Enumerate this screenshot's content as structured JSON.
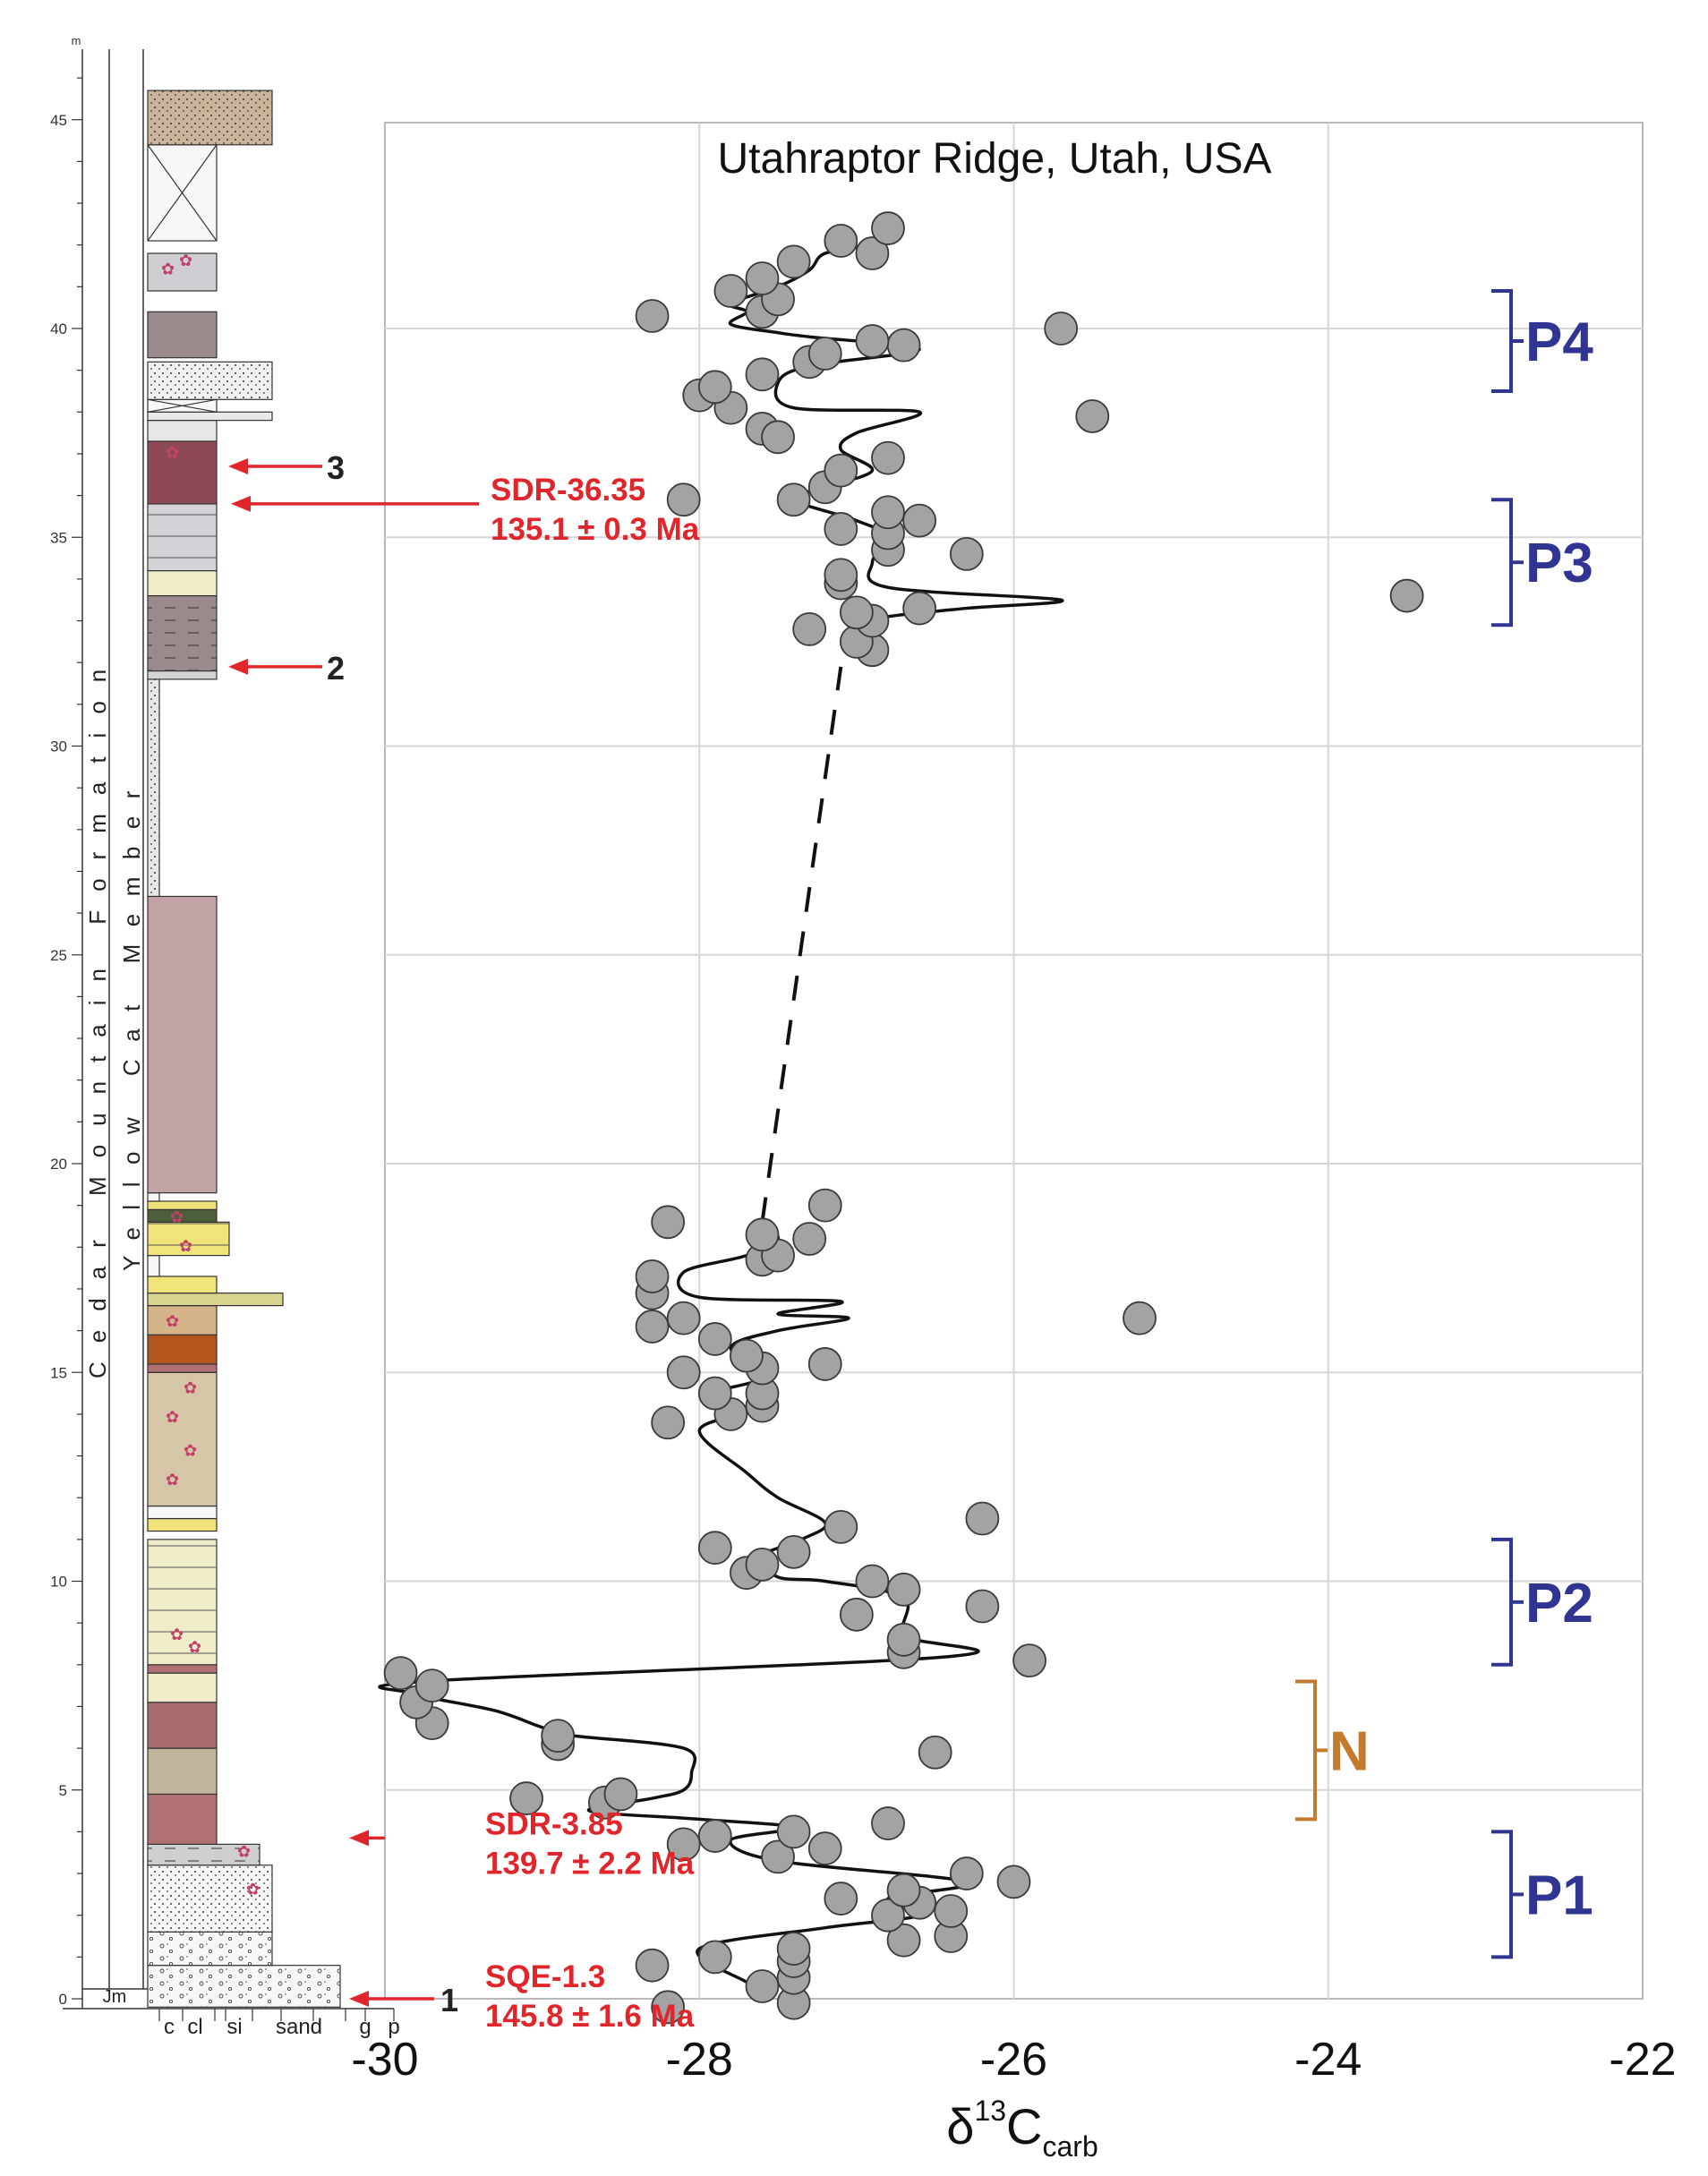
{
  "chart_data": {
    "type": "scatter",
    "title": "Utahraptor Ridge, Utah, USA",
    "xlabel_main": "δ",
    "xlabel_sup": "13",
    "xlabel_c": "C",
    "xlabel_sub": "carb",
    "xlim": [
      -30,
      -22
    ],
    "xticks": [
      -30,
      -28,
      -26,
      -24,
      -22
    ],
    "xtick_labels": [
      "-30",
      "-28",
      "-26",
      "-24",
      "-22"
    ],
    "ylim": [
      0,
      45
    ],
    "y_unit": "m",
    "yticks": [
      0,
      5,
      10,
      15,
      20,
      25,
      30,
      35,
      40,
      45
    ],
    "ytick_labels": [
      "0",
      "5",
      "10",
      "15",
      "20",
      "25",
      "30",
      "35",
      "40",
      "45"
    ],
    "grid": true,
    "points": [
      [
        -28.2,
        -0.2
      ],
      [
        -27.6,
        0.3
      ],
      [
        -27.4,
        -0.1
      ],
      [
        -27.4,
        0.5
      ],
      [
        -27.4,
        0.9
      ],
      [
        -28.3,
        0.8
      ],
      [
        -27.9,
        1.0
      ],
      [
        -27.4,
        1.2
      ],
      [
        -26.7,
        1.4
      ],
      [
        -26.4,
        1.5
      ],
      [
        -26.8,
        2.0
      ],
      [
        -26.4,
        2.1
      ],
      [
        -26.6,
        2.3
      ],
      [
        -27.1,
        2.4
      ],
      [
        -26.7,
        2.6
      ],
      [
        -26.0,
        2.8
      ],
      [
        -26.3,
        3.0
      ],
      [
        -27.5,
        3.4
      ],
      [
        -27.2,
        3.6
      ],
      [
        -28.1,
        3.7
      ],
      [
        -27.9,
        3.9
      ],
      [
        -27.4,
        4.0
      ],
      [
        -26.8,
        4.2
      ],
      [
        -28.6,
        4.7
      ],
      [
        -28.5,
        4.9
      ],
      [
        -29.1,
        4.8
      ],
      [
        -26.5,
        5.9
      ],
      [
        -28.9,
        6.1
      ],
      [
        -28.9,
        6.3
      ],
      [
        -29.7,
        6.6
      ],
      [
        -29.8,
        7.1
      ],
      [
        -29.7,
        7.5
      ],
      [
        -29.9,
        7.8
      ],
      [
        -25.9,
        8.1
      ],
      [
        -26.7,
        8.3
      ],
      [
        -26.7,
        8.6
      ],
      [
        -27.0,
        9.2
      ],
      [
        -26.2,
        9.4
      ],
      [
        -26.7,
        9.8
      ],
      [
        -26.9,
        10.0
      ],
      [
        -27.7,
        10.2
      ],
      [
        -27.6,
        10.4
      ],
      [
        -27.4,
        10.7
      ],
      [
        -27.9,
        10.8
      ],
      [
        -27.1,
        11.3
      ],
      [
        -26.2,
        11.5
      ],
      [
        -28.2,
        13.8
      ],
      [
        -27.8,
        14.0
      ],
      [
        -27.6,
        14.2
      ],
      [
        -27.9,
        14.5
      ],
      [
        -27.6,
        14.5
      ],
      [
        -28.1,
        15.0
      ],
      [
        -27.6,
        15.1
      ],
      [
        -27.2,
        15.2
      ],
      [
        -27.7,
        15.4
      ],
      [
        -27.9,
        15.8
      ],
      [
        -28.3,
        16.1
      ],
      [
        -28.1,
        16.3
      ],
      [
        -25.2,
        16.3
      ],
      [
        -28.3,
        16.9
      ],
      [
        -28.3,
        17.3
      ],
      [
        -27.6,
        17.7
      ],
      [
        -27.5,
        17.8
      ],
      [
        -27.3,
        18.2
      ],
      [
        -27.6,
        18.3
      ],
      [
        -28.2,
        18.6
      ],
      [
        -27.2,
        19.0
      ],
      [
        -26.9,
        32.3
      ],
      [
        -27.0,
        32.5
      ],
      [
        -27.3,
        32.8
      ],
      [
        -26.9,
        33.0
      ],
      [
        -27.0,
        33.2
      ],
      [
        -26.6,
        33.3
      ],
      [
        -27.1,
        33.9
      ],
      [
        -27.1,
        34.1
      ],
      [
        -26.8,
        34.7
      ],
      [
        -26.3,
        34.6
      ],
      [
        -23.5,
        33.6
      ],
      [
        -27.1,
        35.2
      ],
      [
        -26.8,
        35.1
      ],
      [
        -26.6,
        35.4
      ],
      [
        -26.8,
        35.6
      ],
      [
        -27.4,
        35.9
      ],
      [
        -27.2,
        36.2
      ],
      [
        -28.1,
        35.9
      ],
      [
        -27.1,
        36.6
      ],
      [
        -26.8,
        36.9
      ],
      [
        -27.6,
        37.6
      ],
      [
        -27.5,
        37.4
      ],
      [
        -27.8,
        38.1
      ],
      [
        -28.0,
        38.4
      ],
      [
        -27.9,
        38.6
      ],
      [
        -27.6,
        38.9
      ],
      [
        -27.3,
        39.2
      ],
      [
        -27.2,
        39.4
      ],
      [
        -26.7,
        39.6
      ],
      [
        -26.9,
        39.7
      ],
      [
        -25.7,
        40.0
      ],
      [
        -25.5,
        37.9
      ],
      [
        -28.3,
        40.3
      ],
      [
        -27.6,
        40.4
      ],
      [
        -27.5,
        40.7
      ],
      [
        -27.8,
        40.9
      ],
      [
        -27.6,
        41.2
      ],
      [
        -27.4,
        41.6
      ],
      [
        -26.9,
        41.8
      ],
      [
        -27.1,
        42.1
      ],
      [
        -26.8,
        42.4
      ]
    ],
    "smooth_lower": [
      [
        -27.7,
        0.4
      ],
      [
        -28.0,
        1.2
      ],
      [
        -27.2,
        1.7
      ],
      [
        -26.6,
        2.0
      ],
      [
        -26.8,
        2.4
      ],
      [
        -26.3,
        2.8
      ],
      [
        -27.5,
        3.3
      ],
      [
        -27.8,
        3.8
      ],
      [
        -27.4,
        4.1
      ],
      [
        -28.0,
        4.3
      ],
      [
        -28.7,
        4.5
      ],
      [
        -28.3,
        4.8
      ],
      [
        -28.1,
        5.0
      ],
      [
        -28.05,
        5.4
      ],
      [
        -28.1,
        6.0
      ],
      [
        -28.8,
        6.3
      ],
      [
        -29.0,
        6.5
      ],
      [
        -29.3,
        6.9
      ],
      [
        -29.8,
        7.3
      ],
      [
        -29.75,
        7.6
      ],
      [
        -26.4,
        8.2
      ],
      [
        -26.7,
        8.7
      ],
      [
        -26.7,
        9.6
      ],
      [
        -27.2,
        10.0
      ],
      [
        -27.5,
        10.1
      ],
      [
        -27.6,
        10.6
      ],
      [
        -27.35,
        11.0
      ],
      [
        -27.2,
        11.4
      ],
      [
        -27.5,
        12.0
      ],
      [
        -27.7,
        12.6
      ],
      [
        -28.0,
        13.6
      ],
      [
        -27.7,
        14.1
      ],
      [
        -27.9,
        14.5
      ],
      [
        -27.6,
        14.9
      ],
      [
        -27.8,
        15.6
      ],
      [
        -27.5,
        16.0
      ],
      [
        -27.05,
        16.3
      ],
      [
        -27.5,
        16.4
      ],
      [
        -27.1,
        16.7
      ],
      [
        -28.0,
        16.8
      ],
      [
        -28.1,
        17.4
      ],
      [
        -27.7,
        17.8
      ],
      [
        -27.5,
        18.2
      ],
      [
        -27.6,
        18.5
      ]
    ],
    "smooth_upper": [
      [
        -27.0,
        32.4
      ],
      [
        -27.0,
        32.9
      ],
      [
        -26.8,
        33.1
      ],
      [
        -26.3,
        33.3
      ],
      [
        -25.7,
        33.5
      ],
      [
        -26.8,
        33.8
      ],
      [
        -26.9,
        34.4
      ],
      [
        -26.8,
        35.0
      ],
      [
        -27.0,
        35.4
      ],
      [
        -27.4,
        35.9
      ],
      [
        -27.2,
        36.2
      ],
      [
        -26.9,
        36.6
      ],
      [
        -27.1,
        37.1
      ],
      [
        -27.0,
        37.5
      ],
      [
        -26.6,
        38.0
      ],
      [
        -27.4,
        38.1
      ],
      [
        -27.5,
        38.7
      ],
      [
        -27.3,
        39.1
      ],
      [
        -26.6,
        39.5
      ],
      [
        -27.3,
        39.8
      ],
      [
        -27.5,
        39.9
      ],
      [
        -27.8,
        40.1
      ],
      [
        -27.7,
        40.4
      ],
      [
        -27.8,
        40.6
      ],
      [
        -27.5,
        41.0
      ],
      [
        -27.3,
        41.4
      ],
      [
        -27.2,
        41.8
      ],
      [
        -26.9,
        42.0
      ]
    ],
    "dashed_gap": [
      [
        -27.6,
        18.6
      ],
      [
        -27.1,
        31.9
      ]
    ],
    "intervals": [
      {
        "label": "P1",
        "from": 1.0,
        "to": 4.0,
        "color": "#303592"
      },
      {
        "label": "N",
        "from": 4.3,
        "to": 7.6,
        "color": "#c47a2c"
      },
      {
        "label": "P2",
        "from": 8.0,
        "to": 11.0,
        "color": "#303592"
      },
      {
        "label": "P3",
        "from": 32.9,
        "to": 35.9,
        "color": "#303592"
      },
      {
        "label": "P4",
        "from": 38.5,
        "to": 40.9,
        "color": "#303592"
      }
    ]
  },
  "column": {
    "y_unit": "m",
    "formation": "Cedar Mountain Formation",
    "member": "Yellow Cat Member",
    "base_unit": "Jm",
    "grain_labels": [
      "c",
      "cl",
      "si",
      "sand",
      "g",
      "p"
    ],
    "layers": [
      {
        "from": -0.2,
        "to": 0.8,
        "width": "g",
        "color": "#f7f7f5",
        "pattern": "pebble"
      },
      {
        "from": 0.8,
        "to": 1.6,
        "width": "sand",
        "color": "#f7f7f5",
        "pattern": "pebble"
      },
      {
        "from": 1.6,
        "to": 3.2,
        "width": "sand",
        "color": "#f7f7f5",
        "pattern": "dots"
      },
      {
        "from": 3.2,
        "to": 3.7,
        "width": "si2",
        "color": "#cfcfcf",
        "pattern": "dash"
      },
      {
        "from": 3.7,
        "to": 4.9,
        "width": "cl",
        "color": "#b07074",
        "pattern": "none"
      },
      {
        "from": 4.9,
        "to": 6.0,
        "width": "cl",
        "color": "#c0b49a",
        "pattern": "none"
      },
      {
        "from": 6.0,
        "to": 7.1,
        "width": "cl",
        "color": "#a96a6e",
        "pattern": "none"
      },
      {
        "from": 7.1,
        "to": 7.8,
        "width": "cl",
        "color": "#efedc9",
        "pattern": "none"
      },
      {
        "from": 7.8,
        "to": 8.0,
        "width": "cl",
        "color": "#b07074",
        "pattern": "none"
      },
      {
        "from": 8.0,
        "to": 11.0,
        "width": "cl",
        "color": "#efedc9",
        "pattern": "lines"
      },
      {
        "from": 11.2,
        "to": 11.5,
        "width": "cl",
        "color": "#efe37a",
        "pattern": "none"
      },
      {
        "from": 11.5,
        "to": 11.8,
        "width": "cl",
        "color": "#f7f7f5",
        "pattern": "none"
      },
      {
        "from": 11.8,
        "to": 15.0,
        "width": "cl",
        "color": "#d6c6a8",
        "pattern": "none"
      },
      {
        "from": 15.0,
        "to": 15.2,
        "width": "cl",
        "color": "#b07074",
        "pattern": "none"
      },
      {
        "from": 15.2,
        "to": 15.9,
        "width": "cl",
        "color": "#b4571f",
        "pattern": "none"
      },
      {
        "from": 15.9,
        "to": 16.6,
        "width": "cl",
        "color": "#d6b48a",
        "pattern": "none"
      },
      {
        "from": 16.6,
        "to": 16.9,
        "width": "si",
        "color": "#d8d48f",
        "pattern": "none"
      },
      {
        "from": 16.9,
        "to": 17.3,
        "width": "cl",
        "color": "#efe37a",
        "pattern": "none"
      },
      {
        "from": 17.3,
        "to": 17.8,
        "width": "c",
        "color": "#f7f7f5",
        "pattern": "none"
      },
      {
        "from": 17.8,
        "to": 18.6,
        "width": "sil",
        "color": "#efe37a",
        "pattern": "lines"
      },
      {
        "from": 18.6,
        "to": 18.9,
        "width": "cl",
        "color": "#4d5e3a",
        "pattern": "none"
      },
      {
        "from": 18.9,
        "to": 19.1,
        "width": "cl",
        "color": "#efe37a",
        "pattern": "none"
      },
      {
        "from": 19.1,
        "to": 19.3,
        "width": "c",
        "color": "#f7f7f5",
        "pattern": "none"
      },
      {
        "from": 19.3,
        "to": 26.4,
        "width": "cl",
        "color": "#c3a4a6",
        "pattern": "none"
      },
      {
        "from": 26.4,
        "to": 31.6,
        "width": "c",
        "color": "#e8e8e8",
        "pattern": "dots"
      },
      {
        "from": 31.6,
        "to": 31.8,
        "width": "cl",
        "color": "#d4d4d4",
        "pattern": "none"
      },
      {
        "from": 31.8,
        "to": 33.6,
        "width": "cl",
        "color": "#9b8a8c",
        "pattern": "dash"
      },
      {
        "from": 33.6,
        "to": 34.2,
        "width": "cl",
        "color": "#efedc9",
        "pattern": "none"
      },
      {
        "from": 34.2,
        "to": 35.8,
        "width": "cl",
        "color": "#d4d4d8",
        "pattern": "lines"
      },
      {
        "from": 35.8,
        "to": 37.3,
        "width": "cl",
        "color": "#8d4a56",
        "pattern": "none"
      },
      {
        "from": 37.3,
        "to": 37.8,
        "width": "cl",
        "color": "#e8e8e8",
        "pattern": "none"
      },
      {
        "from": 37.8,
        "to": 38.0,
        "width": "sand",
        "color": "#e8e8e8",
        "pattern": "none"
      },
      {
        "from": 38.0,
        "to": 38.3,
        "width": "cl",
        "color": "#f7f7f5",
        "pattern": "cross"
      },
      {
        "from": 38.3,
        "to": 39.2,
        "width": "sand",
        "color": "#f0f0f0",
        "pattern": "dots"
      },
      {
        "from": 39.3,
        "to": 40.4,
        "width": "cl",
        "color": "#9b8a8c",
        "pattern": "none"
      },
      {
        "from": 40.9,
        "to": 41.8,
        "width": "cl",
        "color": "#cfcfd3",
        "pattern": "none"
      },
      {
        "from": 42.1,
        "to": 44.4,
        "width": "cl",
        "color": "#f7f7f5",
        "pattern": "cross"
      },
      {
        "from": 44.4,
        "to": 45.7,
        "width": "sand",
        "color": "#c8b49a",
        "pattern": "dots"
      }
    ]
  },
  "annotations": [
    {
      "id": "1",
      "label": "1",
      "y": 0.0
    },
    {
      "id": "2",
      "label": "2",
      "y": 31.9
    },
    {
      "id": "3",
      "label": "3",
      "y": 36.7
    }
  ],
  "samples": [
    {
      "name": "SQE-1.3",
      "age": "145.8 ± 1.6 Ma",
      "y": 0.0
    },
    {
      "name": "SDR-3.85",
      "age": "139.7 ± 2.2 Ma",
      "y": 3.85
    },
    {
      "name": "SDR-36.35",
      "age": "135.1 ± 0.3 Ma",
      "y": 35.8
    }
  ]
}
